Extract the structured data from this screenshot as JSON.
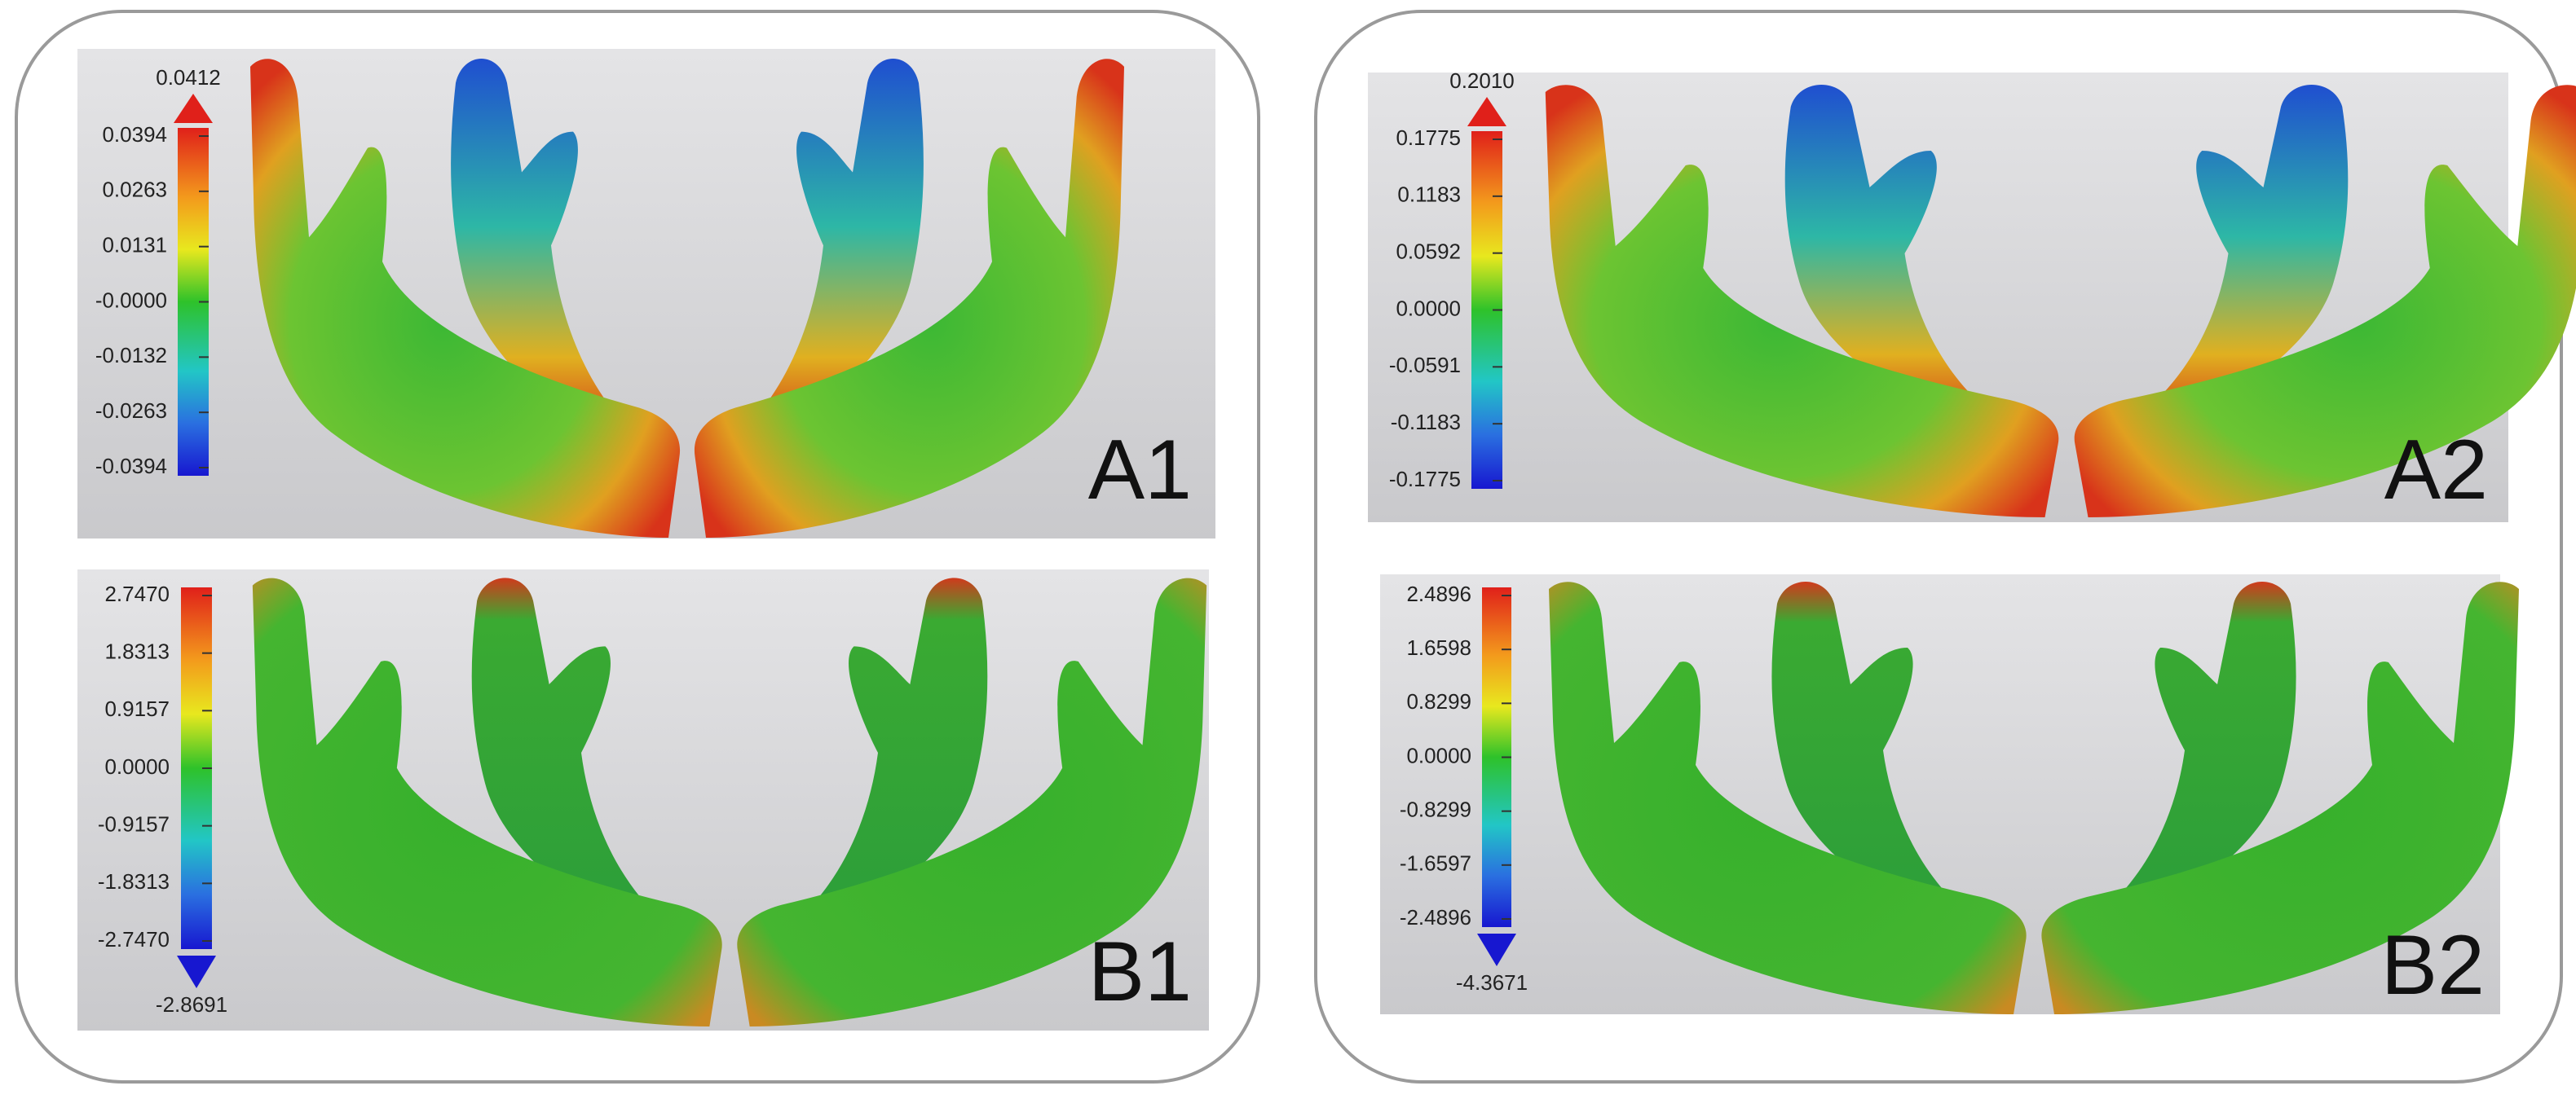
{
  "panels": [
    {
      "label": "A1",
      "scale_max": "0.0412",
      "ticks": [
        "0.0394",
        "0.0263",
        "0.0131",
        "-0.0000",
        "-0.0132",
        "-0.0263",
        "-0.0394"
      ]
    },
    {
      "label": "A2",
      "scale_max": "0.2010",
      "ticks": [
        "0.1775",
        "0.1183",
        "0.0592",
        "0.0000",
        "-0.0591",
        "-0.1183",
        "-0.1775"
      ]
    },
    {
      "label": "B1",
      "ticks": [
        "2.7470",
        "1.8313",
        "0.9157",
        "0.0000",
        "-0.9157",
        "-1.8313",
        "-2.7470"
      ],
      "scale_min": "-2.8691"
    },
    {
      "label": "B2",
      "ticks": [
        "2.4896",
        "1.6598",
        "0.8299",
        "0.0000",
        "-0.8299",
        "-1.6597",
        "-2.4896"
      ],
      "scale_min": "-4.3671"
    }
  ]
}
